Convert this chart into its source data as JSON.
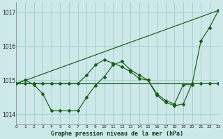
{
  "background_color": "#cce8e8",
  "grid_color": "#aacfcf",
  "line_color": "#1a5c1a",
  "title": "Graphe pression niveau de la mer (hPa)",
  "xlim": [
    0,
    23
  ],
  "ylim": [
    1013.7,
    1017.3
  ],
  "yticks": [
    1014,
    1015,
    1016,
    1017
  ],
  "xticks": [
    0,
    1,
    2,
    3,
    4,
    5,
    6,
    7,
    8,
    9,
    10,
    11,
    12,
    13,
    14,
    15,
    16,
    17,
    18,
    19,
    20,
    21,
    22,
    23
  ],
  "line1_x": [
    0,
    1,
    2,
    3,
    4,
    5,
    6,
    7,
    8,
    9,
    10,
    11,
    12,
    13,
    14,
    15,
    16,
    17,
    18,
    19,
    20
  ],
  "line1_y": [
    1014.9,
    1014.9,
    1014.9,
    1014.9,
    1014.9,
    1014.9,
    1014.9,
    1014.9,
    1014.9,
    1014.9,
    1014.9,
    1014.9,
    1014.9,
    1014.9,
    1014.9,
    1014.9,
    1014.9,
    1014.9,
    1014.9,
    1014.9,
    1014.9
  ],
  "line2_x": [
    0,
    1,
    2,
    3,
    4,
    5,
    6,
    7,
    8,
    9,
    10,
    11,
    12,
    13,
    14,
    15,
    16,
    17,
    18,
    19,
    20,
    21,
    22,
    23
  ],
  "line2_y": [
    1014.9,
    1015.0,
    1014.87,
    1014.6,
    1014.1,
    1014.1,
    1014.1,
    1014.1,
    1014.5,
    1014.85,
    1015.1,
    1015.45,
    1015.55,
    1015.3,
    1015.15,
    1015.0,
    1014.55,
    1014.35,
    1014.25,
    1014.3,
    1014.9,
    1014.9,
    1014.9,
    1014.9
  ],
  "line3_x": [
    0,
    1,
    2,
    3,
    4,
    5,
    6,
    7,
    8,
    9,
    10,
    11,
    12,
    13,
    14,
    15,
    16,
    17,
    18,
    19,
    20,
    21,
    22,
    23
  ],
  "line3_y": [
    1014.9,
    1014.9,
    1014.9,
    1014.9,
    1014.9,
    1014.9,
    1014.9,
    1014.9,
    1015.15,
    1015.45,
    1015.6,
    1015.5,
    1015.4,
    1015.25,
    1015.05,
    1015.0,
    1014.6,
    1014.4,
    1014.3,
    1014.87,
    1014.87,
    1016.15,
    1016.55,
    1017.05
  ],
  "line4_x": [
    0,
    23
  ],
  "line4_y": [
    1014.9,
    1017.05
  ]
}
